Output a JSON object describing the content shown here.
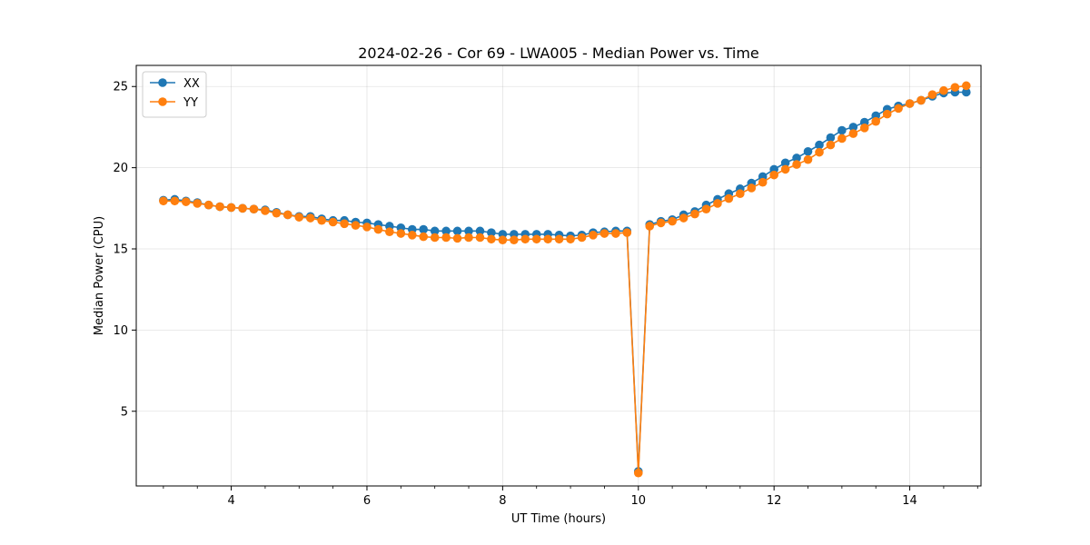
{
  "chart_data": {
    "type": "line",
    "title": "2024-02-26 - Cor 69 - LWA005 - Median Power vs. Time",
    "xlabel": "UT Time (hours)",
    "ylabel": "Median Power (CPU)",
    "xlim": [
      2.6,
      15.05
    ],
    "ylim": [
      0.4,
      26.3
    ],
    "xticks": [
      4,
      6,
      8,
      10,
      12,
      14
    ],
    "yticks": [
      5,
      10,
      15,
      20,
      25
    ],
    "grid": true,
    "legend": "top-left",
    "x": [
      3.0,
      3.167,
      3.333,
      3.5,
      3.667,
      3.833,
      4.0,
      4.167,
      4.333,
      4.5,
      4.667,
      4.833,
      5.0,
      5.167,
      5.333,
      5.5,
      5.667,
      5.833,
      6.0,
      6.167,
      6.333,
      6.5,
      6.667,
      6.833,
      7.0,
      7.167,
      7.333,
      7.5,
      7.667,
      7.833,
      8.0,
      8.167,
      8.333,
      8.5,
      8.667,
      8.833,
      9.0,
      9.167,
      9.333,
      9.5,
      9.667,
      9.833,
      10.0,
      10.167,
      10.333,
      10.5,
      10.667,
      10.833,
      11.0,
      11.167,
      11.333,
      11.5,
      11.667,
      11.833,
      12.0,
      12.167,
      12.333,
      12.5,
      12.667,
      12.833,
      13.0,
      13.167,
      13.333,
      13.5,
      13.667,
      13.833,
      14.0,
      14.167,
      14.333,
      14.5,
      14.667,
      14.833
    ],
    "series": [
      {
        "name": "XX",
        "color": "#1f77b4",
        "values": [
          18.0,
          18.05,
          17.95,
          17.85,
          17.7,
          17.6,
          17.55,
          17.5,
          17.45,
          17.4,
          17.25,
          17.1,
          17.0,
          17.0,
          16.85,
          16.75,
          16.75,
          16.65,
          16.6,
          16.5,
          16.4,
          16.3,
          16.2,
          16.2,
          16.1,
          16.1,
          16.1,
          16.1,
          16.1,
          16.0,
          15.9,
          15.9,
          15.9,
          15.9,
          15.9,
          15.85,
          15.8,
          15.85,
          16.0,
          16.05,
          16.1,
          16.1,
          1.3,
          16.5,
          16.7,
          16.8,
          17.1,
          17.3,
          17.7,
          18.05,
          18.4,
          18.7,
          19.05,
          19.45,
          19.9,
          20.3,
          20.6,
          21.0,
          21.4,
          21.85,
          22.3,
          22.5,
          22.8,
          23.2,
          23.6,
          23.8,
          23.95,
          24.15,
          24.4,
          24.6,
          24.65,
          24.65
        ]
      },
      {
        "name": "YY",
        "color": "#ff7f0e",
        "values": [
          17.95,
          17.95,
          17.9,
          17.8,
          17.7,
          17.6,
          17.55,
          17.5,
          17.45,
          17.35,
          17.2,
          17.1,
          16.95,
          16.9,
          16.75,
          16.65,
          16.55,
          16.45,
          16.35,
          16.2,
          16.05,
          15.95,
          15.85,
          15.75,
          15.7,
          15.7,
          15.65,
          15.7,
          15.7,
          15.6,
          15.55,
          15.55,
          15.6,
          15.6,
          15.6,
          15.6,
          15.6,
          15.7,
          15.85,
          15.95,
          15.95,
          16.0,
          1.2,
          16.4,
          16.6,
          16.7,
          16.9,
          17.15,
          17.45,
          17.8,
          18.1,
          18.4,
          18.75,
          19.1,
          19.55,
          19.9,
          20.2,
          20.5,
          20.95,
          21.4,
          21.8,
          22.1,
          22.45,
          22.85,
          23.3,
          23.65,
          23.95,
          24.15,
          24.5,
          24.75,
          24.95,
          25.05
        ]
      }
    ]
  }
}
